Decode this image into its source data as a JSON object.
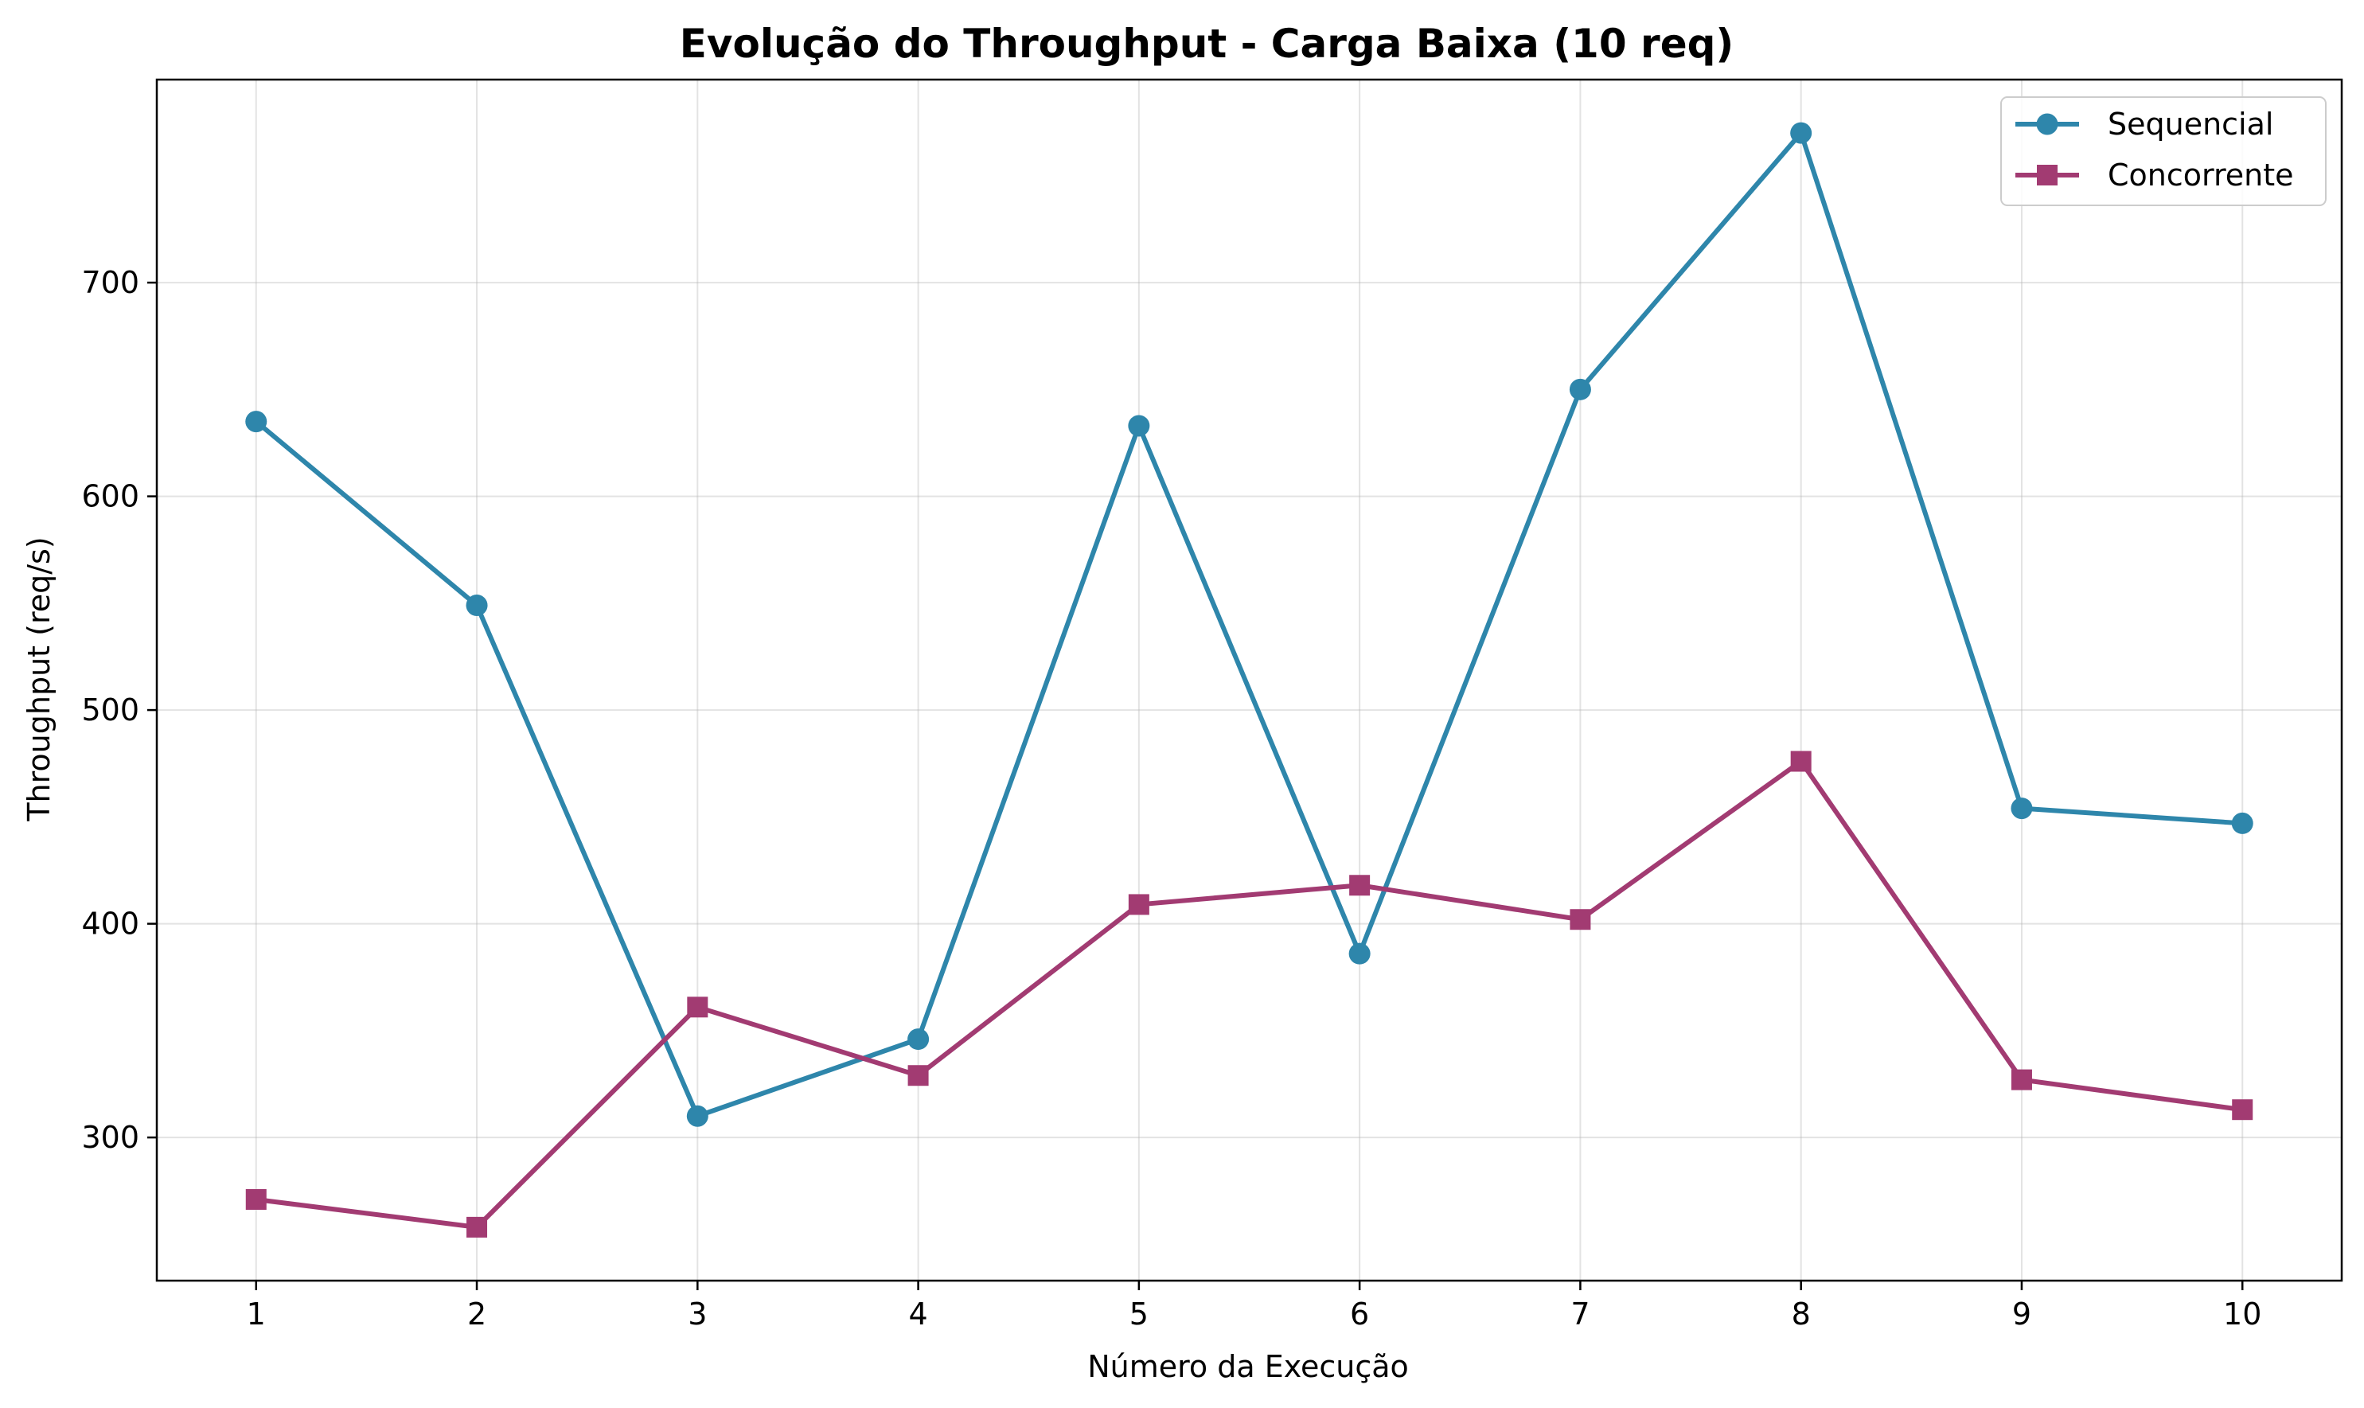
{
  "chart_data": {
    "type": "line",
    "title": "Evolução do Throughput - Carga Baixa (10 req)",
    "xlabel": "Número da Execução",
    "ylabel": "Throughput (req/s)",
    "x": [
      1,
      2,
      3,
      4,
      5,
      6,
      7,
      8,
      9,
      10
    ],
    "xlim": [
      0.55,
      10.45
    ],
    "ylim": [
      233,
      795
    ],
    "yticks": [
      300,
      400,
      500,
      600,
      700
    ],
    "grid": true,
    "legend_position": "top-right",
    "series": [
      {
        "name": "Sequencial",
        "marker": "circle",
        "color": "#2e86ab",
        "values": [
          635,
          549,
          310,
          346,
          633,
          386,
          650,
          770,
          454,
          447
        ]
      },
      {
        "name": "Concorrente",
        "marker": "square",
        "color": "#a23b72",
        "values": [
          271,
          258,
          361,
          329,
          409,
          418,
          402,
          476,
          327,
          313
        ]
      }
    ]
  }
}
